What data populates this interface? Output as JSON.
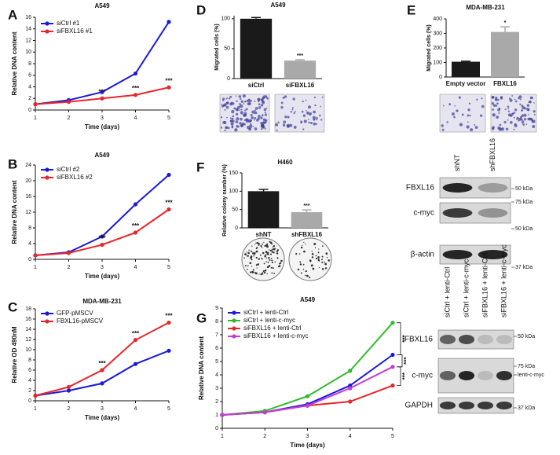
{
  "panel_labels": [
    "A",
    "B",
    "C",
    "D",
    "E",
    "F",
    "G"
  ],
  "chart_data": [
    {
      "type": "line",
      "title": "A549",
      "xlabel": "Time (days)",
      "ylabel": "Relative DNA content",
      "x": [
        1,
        2,
        3,
        4,
        5
      ],
      "xlim": [
        1,
        5
      ],
      "xticks": [
        1,
        2,
        3,
        4,
        5
      ],
      "ylim": [
        0,
        16
      ],
      "yticks": [
        0,
        2,
        4,
        6,
        8,
        10,
        12,
        14,
        16
      ],
      "series": [
        {
          "name": "siCtrl #1",
          "color": "#1a1adb",
          "values": [
            1,
            1.7,
            3.1,
            6.3,
            15.2
          ]
        },
        {
          "name": "siFBXL16 #1",
          "color": "#e8262b",
          "values": [
            1,
            1.4,
            2.0,
            2.6,
            3.9
          ],
          "point_labels": [
            null,
            null,
            "***",
            "***",
            "***"
          ]
        }
      ]
    },
    {
      "type": "line",
      "title": "A549",
      "xlabel": "Time (days)",
      "ylabel": "Relative DNA content",
      "x": [
        1,
        2,
        3,
        4,
        5
      ],
      "xlim": [
        1,
        5
      ],
      "xticks": [
        1,
        2,
        3,
        4,
        5
      ],
      "ylim": [
        0,
        24
      ],
      "yticks": [
        0,
        4,
        8,
        12,
        16,
        20,
        24
      ],
      "series": [
        {
          "name": "siCtrl #2",
          "color": "#1a1adb",
          "values": [
            1,
            1.8,
            5.8,
            14,
            21.5
          ]
        },
        {
          "name": "siFBXL16 #2",
          "color": "#e8262b",
          "values": [
            1,
            1.6,
            3.7,
            6.8,
            12.7
          ],
          "point_labels": [
            null,
            null,
            "***",
            "***",
            "***"
          ]
        }
      ]
    },
    {
      "type": "line",
      "title": "MDA-MB-231",
      "xlabel": "Time (days)",
      "ylabel": "Relative OD 490nM",
      "x": [
        1,
        2,
        3,
        4,
        5
      ],
      "xlim": [
        1,
        5
      ],
      "xticks": [
        1,
        2,
        3,
        4,
        5
      ],
      "ylim": [
        0,
        18
      ],
      "yticks": [
        0,
        2,
        4,
        6,
        8,
        10,
        12,
        14,
        16,
        18
      ],
      "series": [
        {
          "name": "GFP-pMSCV",
          "color": "#1a1adb",
          "values": [
            1,
            2,
            3.4,
            7.2,
            9.8
          ]
        },
        {
          "name": "FBXL16-pMSCV",
          "color": "#e8262b",
          "values": [
            1,
            2.7,
            6,
            11.9,
            15.3
          ],
          "point_labels": [
            null,
            null,
            "***",
            "***",
            "***"
          ]
        }
      ]
    },
    {
      "type": "bar",
      "title": "A549",
      "ylabel": "Migrated cells (%)",
      "categories": [
        "siCtrl",
        "siFBXL16"
      ],
      "values": [
        100,
        30
      ],
      "errors": [
        2,
        1.5
      ],
      "colors": [
        "#1a1a1a",
        "#a9a9a9"
      ],
      "point_labels": [
        null,
        "***"
      ],
      "ylim": [
        0,
        105
      ],
      "yticks": [
        0,
        50,
        100
      ]
    },
    {
      "type": "bar",
      "title": "MDA-MB-231",
      "ylabel": "Migrated cells (%)",
      "categories": [
        "Empty vector",
        "FBXL16"
      ],
      "values": [
        105,
        310
      ],
      "errors": [
        4,
        35
      ],
      "colors": [
        "#1a1a1a",
        "#a9a9a9"
      ],
      "point_labels": [
        null,
        "*"
      ],
      "ylim": [
        0,
        400
      ],
      "yticks": [
        0,
        100,
        200,
        300,
        400
      ]
    },
    {
      "type": "bar",
      "title": "H460",
      "ylabel": "Relative colony number (%)",
      "categories": [
        "shNT",
        "shFBXL16"
      ],
      "values": [
        100,
        43
      ],
      "errors": [
        5,
        6
      ],
      "colors": [
        "#1a1a1a",
        "#a9a9a9"
      ],
      "point_labels": [
        null,
        "***"
      ],
      "ylim": [
        0,
        150
      ],
      "yticks": [
        0,
        50,
        100,
        150
      ]
    },
    {
      "type": "line",
      "title": "A549",
      "xlabel": "Time (days)",
      "ylabel": "Relative DNA content",
      "x": [
        1,
        2,
        3,
        4,
        5
      ],
      "xlim": [
        1,
        5
      ],
      "xticks": [
        1,
        2,
        3,
        4,
        5
      ],
      "ylim": [
        0,
        9
      ],
      "yticks": [
        0,
        1,
        2,
        3,
        4,
        5,
        6,
        7,
        8,
        9
      ],
      "series": [
        {
          "name": "siCtrl + lenti-Ctrl",
          "color": "#1a1adb",
          "values": [
            1,
            1.2,
            1.8,
            3.2,
            5.5
          ]
        },
        {
          "name": "siCtrl + lenti-c-myc",
          "color": "#2dbb2d",
          "values": [
            1,
            1.3,
            2.4,
            4.3,
            7.9
          ]
        },
        {
          "name": "siFBXL16 + lenti-Ctrl",
          "color": "#e8262b",
          "values": [
            1,
            1.2,
            1.7,
            2.0,
            3.2
          ]
        },
        {
          "name": "siFBXL16 + lenti-c-myc",
          "color": "#c43bd6",
          "values": [
            1,
            1.2,
            1.7,
            3.0,
            4.6
          ]
        }
      ],
      "annotations": [
        "***",
        "***",
        "***"
      ]
    }
  ],
  "blots": [
    {
      "lanes": [
        "shNT",
        "shFBXL16"
      ],
      "rows": [
        "FBXL16",
        "c-myc",
        "β-actin"
      ],
      "markers": [
        "50 kDa",
        "75 kDa",
        "50 kDa",
        "37 kDa"
      ]
    },
    {
      "lanes": [
        "siCtrl + lenti-Ctrl",
        "siCtrl + lenti-c-myc",
        "siFBXL16 + lenti-Ctrl",
        "siFBXL16 + lenti-c-myc"
      ],
      "rows": [
        "FBXL16",
        "c-myc",
        "GAPDH"
      ],
      "markers": [
        "50 kDa",
        "75 kDa",
        "lenti-c-myc",
        "37 kDa"
      ]
    }
  ]
}
